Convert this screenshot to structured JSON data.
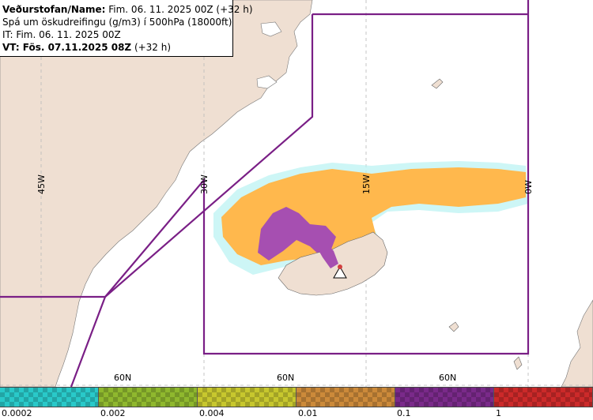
{
  "info": {
    "name_label": "Veðurstofan/Name:",
    "name_value": " Fim. 06. 11. 2025 00Z (+32 h)",
    "product": "Spá um öskudreifingu (g/m3) í 500hPa (18000ft)",
    "it": "IT: Fim. 06. 11. 2025 00Z",
    "vt_label": "VT: Fös. 07.11.2025 08Z",
    "vt_value": " (+32 h)"
  },
  "map": {
    "lon_labels": [
      "45W",
      "30W",
      "15W",
      "0W"
    ],
    "lat_labels": [
      "60N",
      "60N",
      "60N"
    ],
    "volcano_icon": "warning-triangle-icon",
    "colors": {
      "land": "#efdfd2",
      "sea": "#ffffff",
      "fir_boundary": "#7a1f86",
      "ash_low": "#ffb84d",
      "ash_mid": "#a64fb1",
      "ash_trace": "#b8f2f2",
      "grid": "#b8b8b8"
    }
  },
  "legend": {
    "colors": [
      "#29c9c9",
      "#8fb82e",
      "#c7c72e",
      "#cc8a3a",
      "#7a2a8a",
      "#cc2a2a"
    ],
    "ticks": [
      "0.0002",
      "0.002",
      "0.004",
      "0.01",
      "0.1",
      "1"
    ]
  }
}
